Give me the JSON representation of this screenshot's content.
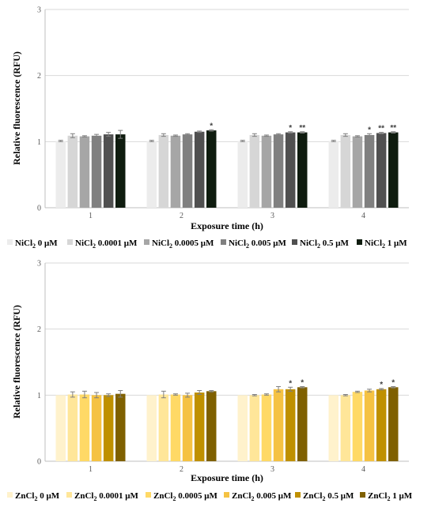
{
  "chart_data": [
    {
      "type": "bar",
      "xlabel": "Exposure time (h)",
      "ylabel": "Relative fluorescence (RFU)",
      "ylim": [
        0,
        3
      ],
      "yticks": [
        "0",
        "1",
        "2",
        "3"
      ],
      "categories": [
        "1",
        "2",
        "3",
        "4"
      ],
      "grid": true,
      "legend_position": "bottom",
      "series": [
        {
          "name": "NiCl2 0 μM",
          "color": "#ececec",
          "values": [
            1.01,
            1.01,
            1.01,
            1.01
          ],
          "errors": [
            0.01,
            0.01,
            0.01,
            0.01
          ],
          "significance": [
            "",
            "",
            "",
            ""
          ]
        },
        {
          "name": "NiCl2 0.0001 μM",
          "color": "#d6d6d6",
          "values": [
            1.09,
            1.1,
            1.1,
            1.1
          ],
          "errors": [
            0.03,
            0.02,
            0.02,
            0.02
          ],
          "significance": [
            "",
            "",
            "",
            ""
          ]
        },
        {
          "name": "NiCl2 0.0005 μM",
          "color": "#a6a6a6",
          "values": [
            1.08,
            1.09,
            1.09,
            1.08
          ],
          "errors": [
            0.01,
            0.01,
            0.01,
            0.01
          ],
          "significance": [
            "",
            "",
            "",
            ""
          ]
        },
        {
          "name": "NiCl2 0.005 μM",
          "color": "#808080",
          "values": [
            1.09,
            1.11,
            1.11,
            1.1
          ],
          "errors": [
            0.02,
            0.01,
            0.01,
            0.02
          ],
          "significance": [
            "",
            "",
            "",
            "*"
          ]
        },
        {
          "name": "NiCl2 0.5 μM",
          "color": "#505050",
          "values": [
            1.11,
            1.15,
            1.14,
            1.13
          ],
          "errors": [
            0.03,
            0.01,
            0.01,
            0.01
          ],
          "significance": [
            "",
            "",
            "*",
            "**"
          ]
        },
        {
          "name": "NiCl2 1 μM",
          "color": "#0f1c0f",
          "values": [
            1.11,
            1.17,
            1.14,
            1.14
          ],
          "errors": [
            0.06,
            0.01,
            0.01,
            0.01
          ],
          "significance": [
            "",
            "*",
            "**",
            "**"
          ]
        }
      ]
    },
    {
      "type": "bar",
      "xlabel": "Exposure time (h)",
      "ylabel": "Relative fluorescence (RFU)",
      "ylim": [
        0,
        3
      ],
      "yticks": [
        "0",
        "1",
        "2",
        "3"
      ],
      "categories": [
        "1",
        "2",
        "3",
        "4"
      ],
      "grid": true,
      "legend_position": "bottom",
      "series": [
        {
          "name": "ZnCl2 0 μM",
          "color": "#fff2cc",
          "values": [
            1.0,
            1.0,
            1.0,
            1.0
          ],
          "errors": [
            0.0,
            0.0,
            0.0,
            0.0
          ],
          "significance": [
            "",
            "",
            "",
            ""
          ]
        },
        {
          "name": "ZnCl2 0.0001 μM",
          "color": "#ffe699",
          "values": [
            1.01,
            1.01,
            1.0,
            1.0
          ],
          "errors": [
            0.04,
            0.05,
            0.01,
            0.01
          ],
          "significance": [
            "",
            "",
            "",
            ""
          ]
        },
        {
          "name": "ZnCl2 0.0005 μM",
          "color": "#ffd966",
          "values": [
            1.01,
            1.01,
            1.01,
            1.05
          ],
          "errors": [
            0.05,
            0.01,
            0.01,
            0.01
          ],
          "significance": [
            "",
            "",
            "",
            ""
          ]
        },
        {
          "name": "ZnCl2 0.005 μM",
          "color": "#f5c243",
          "values": [
            1.0,
            1.0,
            1.09,
            1.07
          ],
          "errors": [
            0.04,
            0.03,
            0.04,
            0.02
          ],
          "significance": [
            "",
            "",
            "",
            ""
          ]
        },
        {
          "name": "ZnCl2 0.5 μM",
          "color": "#bf9000",
          "values": [
            1.0,
            1.04,
            1.09,
            1.09
          ],
          "errors": [
            0.02,
            0.03,
            0.03,
            0.01
          ],
          "significance": [
            "",
            "",
            "*",
            "*"
          ]
        },
        {
          "name": "ZnCl2 1 μM",
          "color": "#7f6000",
          "values": [
            1.02,
            1.06,
            1.12,
            1.12
          ],
          "errors": [
            0.05,
            0.01,
            0.01,
            0.01
          ],
          "significance": [
            "",
            "",
            "*",
            "*"
          ]
        }
      ]
    }
  ]
}
